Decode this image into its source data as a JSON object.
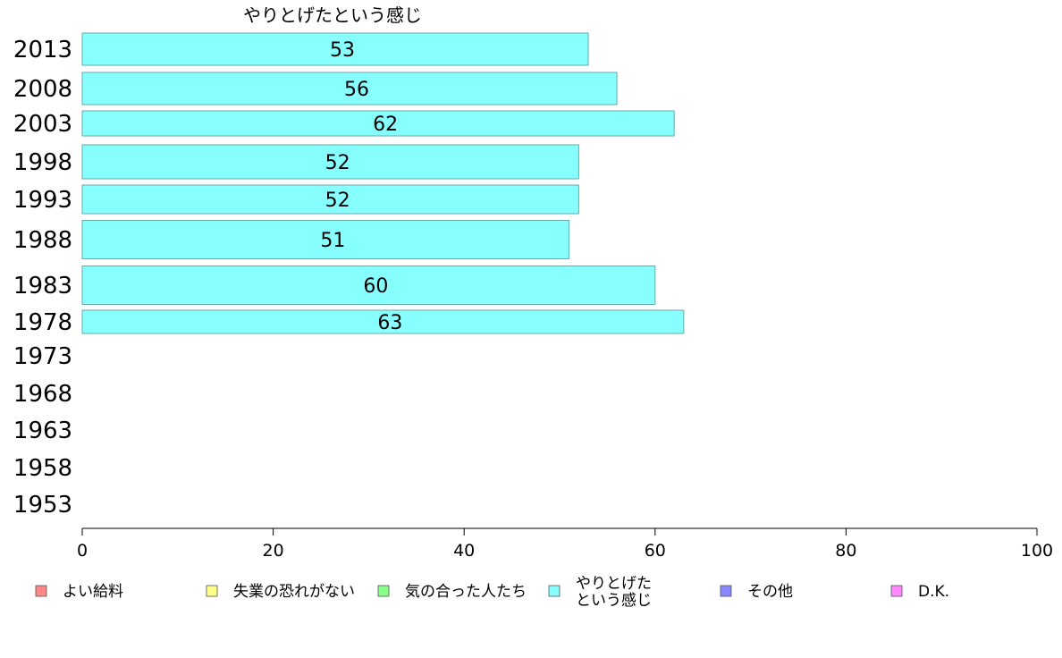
{
  "chart_data": {
    "type": "bar",
    "orientation": "horizontal",
    "series_title": "やりとげたという感じ",
    "categories": [
      "2013",
      "2008",
      "2003",
      "1998",
      "1993",
      "1988",
      "1983",
      "1978",
      "1973",
      "1968",
      "1963",
      "1958",
      "1953"
    ],
    "values": [
      53,
      56,
      62,
      52,
      52,
      51,
      60,
      63,
      null,
      null,
      null,
      null,
      null
    ],
    "xlim": [
      0,
      100
    ],
    "xticks": [
      0,
      20,
      40,
      60,
      80,
      100
    ],
    "bar_color": "#88ffff",
    "bar_stroke": "#66aaaa",
    "grid": false,
    "legend_placement": "bottom",
    "legend": [
      {
        "label": "よい給料",
        "color": "#ff8888"
      },
      {
        "label": "失業の恐れがない",
        "color": "#ffff88"
      },
      {
        "label": "気の合った人たち",
        "color": "#88ff88"
      },
      {
        "label": "やりとげた\nという感じ",
        "color": "#88ffff"
      },
      {
        "label": "その他",
        "color": "#8888ff"
      },
      {
        "label": "D.K.",
        "color": "#ff88ff"
      }
    ]
  }
}
